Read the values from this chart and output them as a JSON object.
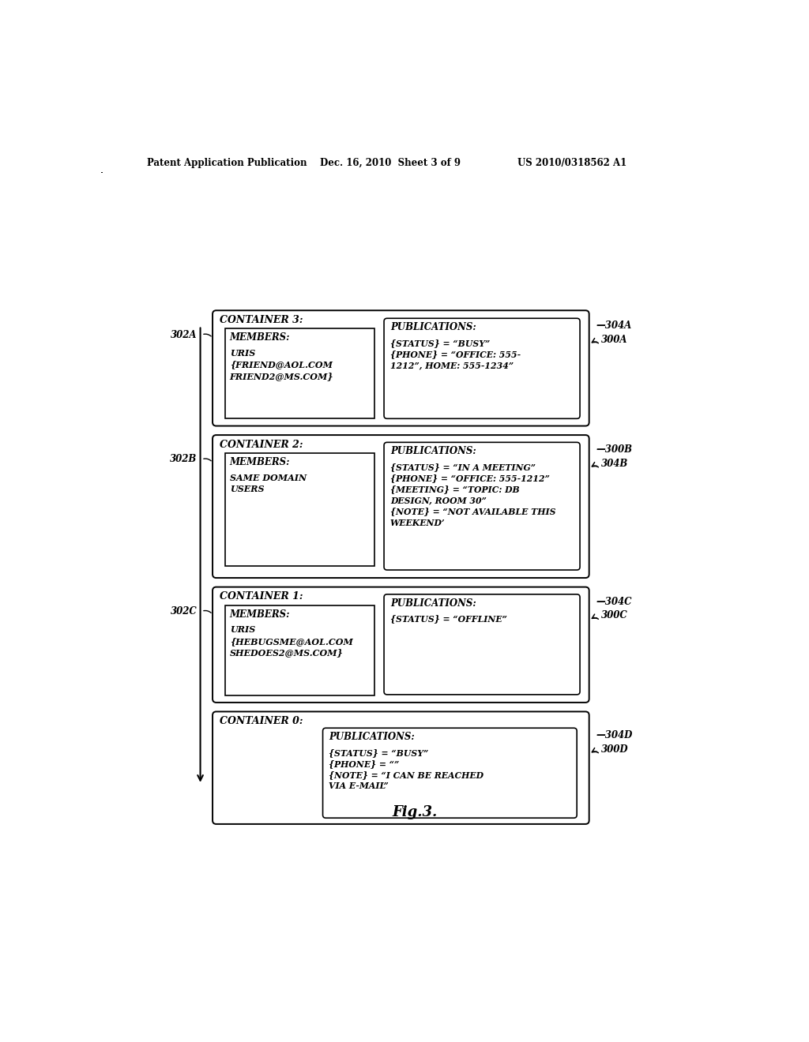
{
  "header_left": "Patent Application Publication",
  "header_mid": "Dec. 16, 2010  Sheet 3 of 9",
  "header_right": "US 2010/0318562 A1",
  "fig_label": "Fig.3.",
  "bg_color": "#ffffff",
  "containers": [
    {
      "id": "3",
      "side_label": "302A",
      "members_title": "MEMBERS:",
      "members_body": "URIS\n{FRIEND@AOL.COM\nFRIEND2@MS.COM}",
      "pub_top_label": "304A",
      "pub_arrow_label": "300A",
      "pub_title": "PUBLICATIONS:",
      "pub_body": "{STATUS} = “BUSY”\n{PHONE} = “OFFICE: 555-\n1212”, HOME: 555-1234”"
    },
    {
      "id": "2",
      "side_label": "302B",
      "members_title": "MEMBERS:",
      "members_body": "SAME DOMAIN\nUSERS",
      "pub_top_label": "300B",
      "pub_arrow_label": "304B",
      "pub_title": "PUBLICATIONS:",
      "pub_body": "{STATUS} = “IN A MEETING”\n{PHONE} = “OFFICE: 555-1212”\n{MEETING} = “TOPIC: DB\nDESIGN, ROOM 30”\n{NOTE} = “NOT AVAILABLE THIS\nWEEKEND’"
    },
    {
      "id": "1",
      "side_label": "302C",
      "members_title": "MEMBERS:",
      "members_body": "URIS\n{HEBUGSME@AOL.COM\nSHEDOES2@MS.COM}",
      "pub_top_label": "304C",
      "pub_arrow_label": "300C",
      "pub_title": "PUBLICATIONS:",
      "pub_body": "{STATUS} = “OFFLINE”"
    },
    {
      "id": "0",
      "side_label": null,
      "members_title": null,
      "members_body": null,
      "pub_top_label": "304D",
      "pub_arrow_label": "300D",
      "pub_title": "PUBLICATIONS:",
      "pub_body": "{STATUS} = “BUSY”\n{PHONE} = “”\n{NOTE} = “I CAN BE REACHED\nVIA E-MAIL”"
    }
  ]
}
